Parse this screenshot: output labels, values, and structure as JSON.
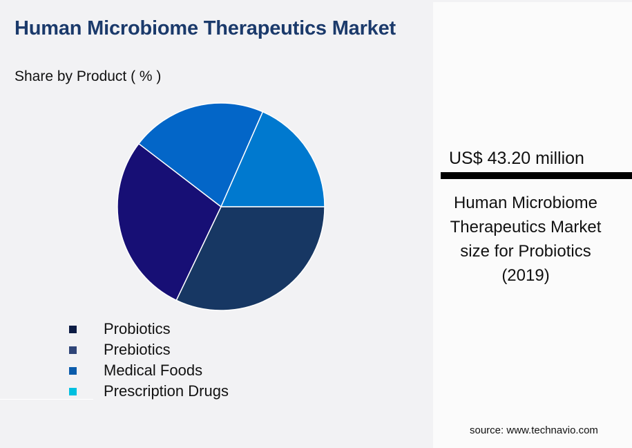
{
  "header": {
    "title": "Human Microbiome Therapeutics Market",
    "subtitle": "Share by Product ( % )"
  },
  "legend": [
    {
      "label": "Probiotics",
      "color": "#0c1c44"
    },
    {
      "label": "Prebiotics",
      "color": "#2f4578"
    },
    {
      "label": "Medical Foods",
      "color": "#0b5cab"
    },
    {
      "label": "Prescription Drugs",
      "color": "#00c0e0"
    }
  ],
  "highlight": {
    "value": "US$ 43.20 million",
    "description": "Human Microbiome Therapeutics Market size for Probiotics (2019)"
  },
  "source": "source: www.technavio.com",
  "chart_data": {
    "type": "pie",
    "title": "Human Microbiome Therapeutics Market",
    "subtitle": "Share by Product ( % )",
    "categories": [
      "Probiotics",
      "Prebiotics",
      "Medical Foods",
      "Prescription Drugs"
    ],
    "values": [
      32.1,
      28.3,
      21.2,
      18.4
    ],
    "slice_colors": [
      "#173763",
      "#170f75",
      "#0366c8",
      "#0079cf"
    ],
    "legend_colors": [
      "#0c1c44",
      "#2f4578",
      "#0b5cab",
      "#00c0e0"
    ],
    "legend_position": "bottom",
    "data_labels": false,
    "annotation": "US$ 43.20 million — Human Microbiome Therapeutics Market size for Probiotics (2019)"
  }
}
